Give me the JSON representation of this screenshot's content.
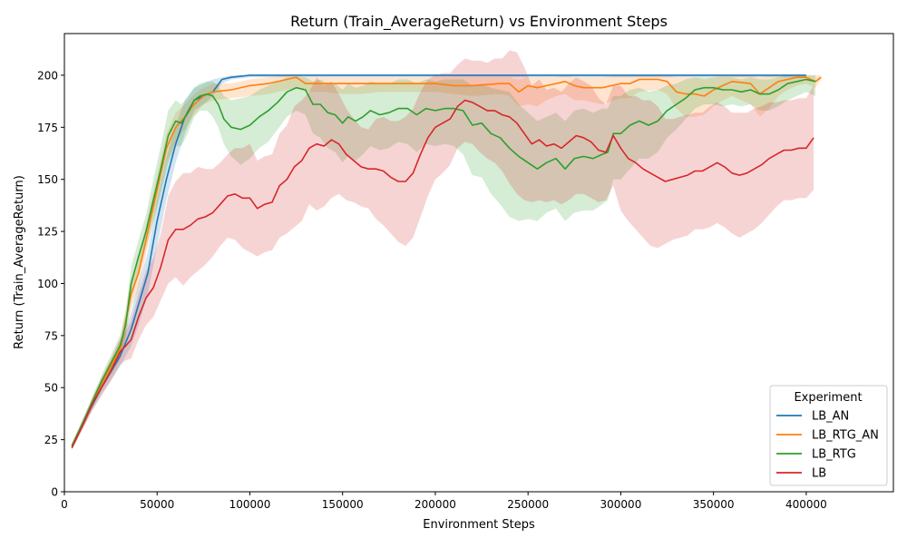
{
  "chart_data": {
    "type": "line",
    "title": "Return (Train_AverageReturn) vs Environment Steps",
    "xlabel": "Environment Steps",
    "ylabel": "Return (Train_AverageReturn)",
    "xlim": [
      0,
      447000
    ],
    "ylim": [
      0,
      220
    ],
    "xticks": [
      0,
      50000,
      100000,
      150000,
      200000,
      250000,
      300000,
      350000,
      400000
    ],
    "yticks": [
      0,
      25,
      50,
      75,
      100,
      125,
      150,
      175,
      200
    ],
    "grid": false,
    "legend": {
      "title": "Experiment",
      "position": "lower right"
    },
    "series": [
      {
        "name": "LB_AN",
        "color": "#1f77b4",
        "x": [
          4000,
          10000,
          20000,
          30000,
          36000,
          40000,
          45000,
          50000,
          55000,
          60000,
          65000,
          70000,
          75000,
          80000,
          85000,
          90000,
          100000,
          150000,
          200000,
          250000,
          300000,
          350000,
          400000
        ],
        "y": [
          22,
          33,
          50,
          65,
          78,
          90,
          105,
          130,
          150,
          167,
          180,
          188,
          190,
          192,
          198,
          199,
          200,
          200,
          200,
          200,
          200,
          200,
          200
        ],
        "lower": [
          21,
          31,
          47,
          60,
          70,
          80,
          95,
          118,
          140,
          158,
          172,
          183,
          186,
          190,
          196,
          198,
          199,
          199,
          199,
          199,
          199,
          199,
          199
        ],
        "upper": [
          23,
          35,
          53,
          70,
          86,
          100,
          115,
          140,
          160,
          176,
          188,
          194,
          196,
          198,
          199,
          200,
          200,
          200,
          200,
          200,
          200,
          200,
          200
        ]
      },
      {
        "name": "LB_RTG_AN",
        "color": "#ff7f0e",
        "x": [
          4000,
          10000,
          20000,
          30000,
          36000,
          40000,
          45000,
          50000,
          55000,
          60000,
          65000,
          70000,
          75000,
          80000,
          90000,
          100000,
          110000,
          120000,
          125000,
          130000,
          140000,
          150000,
          160000,
          170000,
          180000,
          200000,
          210000,
          220000,
          235000,
          240000,
          245000,
          250000,
          255000,
          260000,
          265000,
          270000,
          275000,
          280000,
          285000,
          290000,
          300000,
          305000,
          310000,
          320000,
          325000,
          330000,
          335000,
          340000,
          345000,
          350000,
          355000,
          360000,
          370000,
          375000,
          380000,
          385000,
          390000,
          395000,
          400000,
          405000,
          408000
        ],
        "y": [
          22,
          33,
          52,
          68,
          95,
          105,
          125,
          145,
          165,
          175,
          180,
          186,
          190,
          192,
          193,
          195,
          196,
          198,
          199,
          196,
          196,
          196,
          196,
          196,
          196,
          196,
          195,
          195,
          196,
          196,
          192,
          195,
          194,
          195,
          196,
          197,
          195,
          194,
          194,
          194,
          196,
          196,
          198,
          198,
          197,
          192,
          191,
          191,
          190,
          193,
          195,
          197,
          196,
          191,
          194,
          197,
          198,
          199,
          199,
          197,
          199
        ],
        "lower": [
          21,
          31,
          49,
          63,
          88,
          98,
          118,
          138,
          158,
          168,
          174,
          181,
          186,
          188,
          189,
          190,
          191,
          193,
          194,
          192,
          192,
          191,
          191,
          192,
          192,
          192,
          191,
          190,
          191,
          190,
          185,
          186,
          185,
          188,
          190,
          191,
          188,
          188,
          187,
          186,
          189,
          189,
          192,
          193,
          191,
          184,
          180,
          180,
          181,
          185,
          188,
          190,
          186,
          180,
          184,
          190,
          193,
          195,
          196,
          194,
          198
        ],
        "upper": [
          23,
          35,
          55,
          73,
          102,
          112,
          132,
          152,
          172,
          182,
          186,
          191,
          194,
          196,
          196,
          198,
          199,
          200,
          200,
          199,
          199,
          199,
          199,
          199,
          199,
          199,
          199,
          199,
          199,
          199,
          198,
          199,
          199,
          199,
          199,
          200,
          199,
          199,
          199,
          199,
          200,
          200,
          200,
          200,
          200,
          199,
          199,
          199,
          198,
          199,
          200,
          200,
          200,
          199,
          200,
          200,
          200,
          200,
          200,
          200,
          200
        ]
      },
      {
        "name": "LB_RTG",
        "color": "#2ca02c",
        "x": [
          4000,
          10000,
          20000,
          30000,
          33000,
          36000,
          40000,
          44000,
          48000,
          52000,
          56000,
          60000,
          63000,
          66000,
          70000,
          73000,
          77000,
          80000,
          83000,
          86000,
          90000,
          95000,
          100000,
          105000,
          110000,
          115000,
          120000,
          125000,
          130000,
          134000,
          138000,
          142000,
          146000,
          150000,
          153000,
          157000,
          161000,
          165000,
          170000,
          175000,
          180000,
          185000,
          190000,
          195000,
          200000,
          205000,
          210000,
          215000,
          220000,
          225000,
          230000,
          235000,
          240000,
          245000,
          250000,
          255000,
          260000,
          265000,
          270000,
          275000,
          280000,
          285000,
          290000,
          293000,
          296000,
          300000,
          305000,
          310000,
          315000,
          320000,
          325000,
          330000,
          335000,
          340000,
          345000,
          350000,
          355000,
          360000,
          365000,
          370000,
          375000,
          380000,
          385000,
          390000,
          395000,
          400000,
          405000
        ],
        "y": [
          22,
          33,
          53,
          70,
          80,
          100,
          113,
          125,
          140,
          155,
          171,
          178,
          177,
          181,
          188,
          190,
          191,
          190,
          186,
          179,
          175,
          174,
          176,
          180,
          183,
          187,
          192,
          194,
          193,
          186,
          186,
          182,
          181,
          177,
          180,
          178,
          180,
          183,
          181,
          182,
          184,
          184,
          181,
          184,
          183,
          184,
          184,
          183,
          176,
          177,
          172,
          170,
          165,
          161,
          158,
          155,
          158,
          160,
          155,
          160,
          161,
          160,
          162,
          163,
          172,
          172,
          176,
          178,
          176,
          178,
          183,
          186,
          189,
          193,
          194,
          194,
          193,
          193,
          192,
          193,
          191,
          191,
          193,
          196,
          197,
          198,
          197
        ],
        "lower": [
          21,
          31,
          50,
          65,
          74,
          92,
          105,
          117,
          130,
          143,
          158,
          166,
          166,
          171,
          180,
          183,
          183,
          180,
          175,
          167,
          161,
          157,
          160,
          165,
          168,
          174,
          180,
          183,
          181,
          172,
          170,
          165,
          163,
          158,
          161,
          159,
          162,
          166,
          164,
          165,
          168,
          167,
          163,
          167,
          166,
          167,
          166,
          162,
          152,
          151,
          143,
          138,
          132,
          130,
          131,
          130,
          134,
          136,
          130,
          134,
          135,
          135,
          138,
          140,
          150,
          150,
          155,
          160,
          160,
          163,
          170,
          174,
          179,
          184,
          186,
          186,
          185,
          186,
          185,
          186,
          183,
          183,
          185,
          188,
          190,
          192,
          190
        ],
        "upper": [
          23,
          35,
          56,
          75,
          86,
          108,
          121,
          133,
          150,
          166,
          183,
          188,
          186,
          189,
          194,
          196,
          197,
          197,
          195,
          190,
          188,
          189,
          190,
          193,
          195,
          197,
          199,
          199,
          199,
          197,
          198,
          196,
          196,
          193,
          196,
          194,
          195,
          197,
          196,
          196,
          198,
          198,
          196,
          198,
          197,
          198,
          198,
          198,
          195,
          196,
          194,
          193,
          192,
          186,
          182,
          178,
          180,
          182,
          178,
          183,
          184,
          182,
          184,
          184,
          190,
          190,
          193,
          194,
          192,
          193,
          195,
          196,
          198,
          199,
          199,
          199,
          199,
          199,
          198,
          199,
          198,
          198,
          199,
          200,
          200,
          200,
          200
        ]
      },
      {
        "name": "LB",
        "color": "#d62728",
        "x": [
          4000,
          10000,
          15000,
          20000,
          25000,
          30000,
          33000,
          36000,
          40000,
          44000,
          48000,
          52000,
          56000,
          60000,
          64000,
          68000,
          72000,
          76000,
          80000,
          84000,
          88000,
          92000,
          96000,
          100000,
          104000,
          108000,
          112000,
          116000,
          120000,
          124000,
          128000,
          132000,
          136000,
          140000,
          144000,
          148000,
          152000,
          156000,
          160000,
          164000,
          168000,
          172000,
          176000,
          180000,
          184000,
          188000,
          192000,
          196000,
          200000,
          204000,
          208000,
          212000,
          216000,
          220000,
          224000,
          228000,
          232000,
          236000,
          240000,
          244000,
          248000,
          252000,
          256000,
          260000,
          264000,
          268000,
          272000,
          276000,
          280000,
          284000,
          288000,
          292000,
          296000,
          300000,
          304000,
          308000,
          312000,
          316000,
          320000,
          324000,
          328000,
          332000,
          336000,
          340000,
          344000,
          348000,
          352000,
          356000,
          360000,
          364000,
          368000,
          372000,
          376000,
          380000,
          384000,
          388000,
          392000,
          396000,
          400000,
          404000
        ],
        "y": [
          21,
          32,
          42,
          50,
          58,
          67,
          70,
          73,
          84,
          93,
          98,
          108,
          121,
          126,
          126,
          128,
          131,
          132,
          134,
          138,
          142,
          143,
          141,
          141,
          136,
          138,
          139,
          147,
          150,
          156,
          159,
          165,
          167,
          166,
          169,
          167,
          162,
          159,
          156,
          155,
          155,
          154,
          151,
          149,
          149,
          153,
          162,
          170,
          175,
          177,
          179,
          185,
          188,
          187,
          185,
          183,
          183,
          181,
          180,
          177,
          172,
          167,
          169,
          166,
          167,
          165,
          168,
          171,
          170,
          168,
          164,
          163,
          171,
          165,
          160,
          158,
          155,
          153,
          151,
          149,
          150,
          151,
          152,
          154,
          154,
          156,
          158,
          156,
          153,
          152,
          153,
          155,
          157,
          160,
          162,
          164,
          164,
          165,
          165,
          170
        ],
        "lower": [
          20,
          30,
          39,
          46,
          53,
          61,
          63,
          64,
          73,
          80,
          84,
          92,
          100,
          103,
          99,
          103,
          106,
          109,
          113,
          118,
          122,
          121,
          117,
          115,
          113,
          115,
          116,
          122,
          124,
          127,
          130,
          138,
          135,
          137,
          141,
          143,
          140,
          139,
          137,
          136,
          131,
          128,
          124,
          120,
          118,
          122,
          132,
          142,
          150,
          153,
          157,
          165,
          168,
          167,
          163,
          160,
          158,
          154,
          148,
          143,
          140,
          139,
          140,
          139,
          140,
          138,
          140,
          143,
          143,
          141,
          139,
          140,
          147,
          135,
          130,
          126,
          122,
          118,
          117,
          119,
          121,
          122,
          123,
          126,
          126,
          127,
          129,
          127,
          124,
          122,
          124,
          126,
          129,
          133,
          137,
          140,
          140,
          141,
          141,
          145
        ],
        "upper": [
          22,
          34,
          45,
          54,
          63,
          73,
          77,
          82,
          95,
          106,
          112,
          124,
          142,
          149,
          153,
          153,
          156,
          155,
          155,
          158,
          162,
          165,
          165,
          167,
          159,
          161,
          162,
          172,
          176,
          185,
          188,
          192,
          199,
          195,
          197,
          191,
          184,
          179,
          175,
          174,
          179,
          180,
          178,
          178,
          180,
          184,
          192,
          198,
          200,
          201,
          201,
          205,
          208,
          207,
          207,
          206,
          208,
          208,
          212,
          211,
          204,
          195,
          198,
          193,
          194,
          192,
          196,
          199,
          197,
          195,
          189,
          186,
          195,
          195,
          190,
          190,
          188,
          188,
          185,
          179,
          179,
          180,
          181,
          182,
          182,
          185,
          187,
          185,
          182,
          182,
          182,
          184,
          185,
          187,
          187,
          188,
          188,
          189,
          189,
          195
        ]
      }
    ]
  }
}
